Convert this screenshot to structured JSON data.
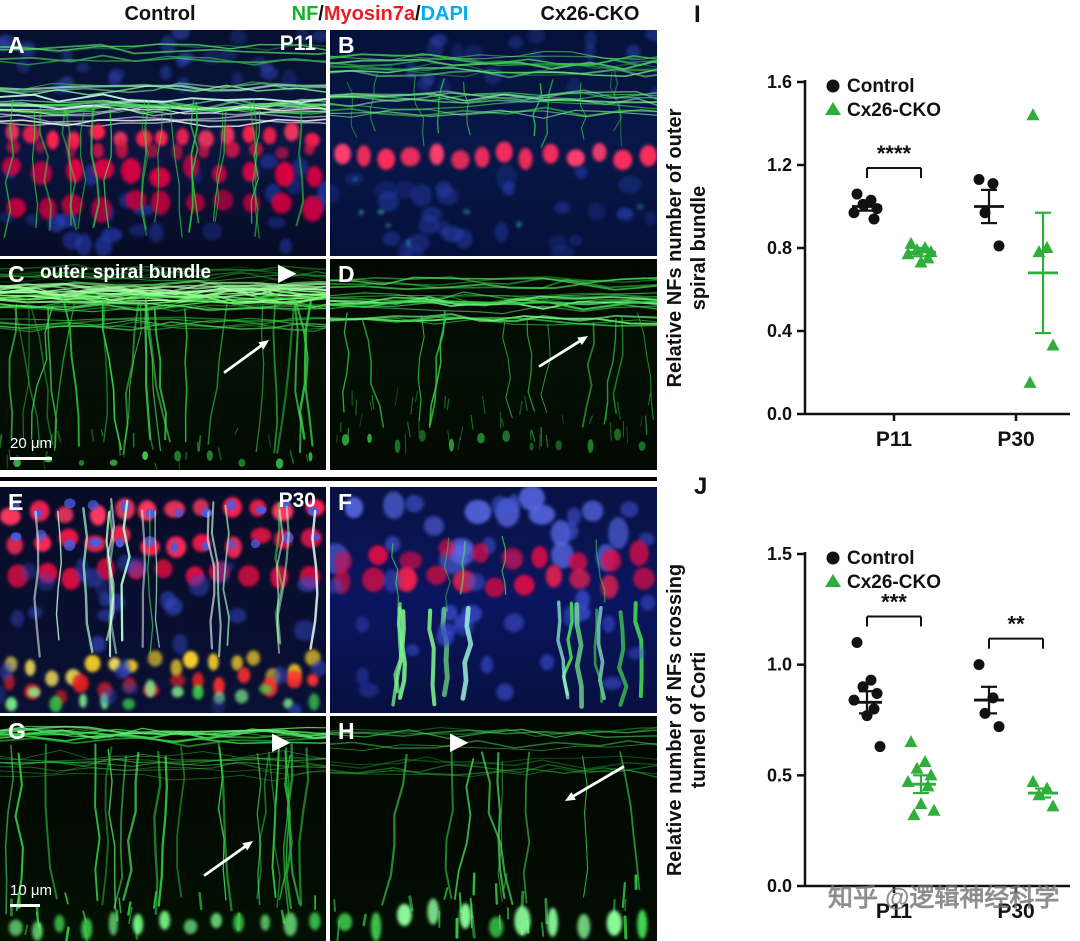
{
  "header": {
    "control": "Control",
    "cko": "Cx26-CKO",
    "stains": {
      "nf": {
        "text": "NF",
        "color": "#16b42a"
      },
      "sep1": "/",
      "myosin": {
        "text": "Myosin7a",
        "color": "#ed1c24"
      },
      "sep2": "/",
      "dapi": {
        "text": "DAPI",
        "color": "#00aeef"
      }
    }
  },
  "panels": {
    "A": {
      "letter": "A",
      "badge": "P11"
    },
    "B": {
      "letter": "B"
    },
    "C": {
      "letter": "C",
      "annotation": "outer spiral bundle",
      "scalebar": "20 μm"
    },
    "D": {
      "letter": "D"
    },
    "E": {
      "letter": "E",
      "badge": "P30"
    },
    "F": {
      "letter": "F"
    },
    "G": {
      "letter": "G",
      "scalebar": "10 μm"
    },
    "H": {
      "letter": "H"
    }
  },
  "icons": {
    "arrowhead_right": "▶"
  },
  "watermark": "知乎 @逻辑神经科学",
  "chart_data": [
    {
      "panel_label": "I",
      "type": "scatter",
      "title": "",
      "ylabel": "Relative NFs number of outer spiral bundle",
      "ylabel_lines": [
        "Relative NFs number of outer",
        "spiral bundle"
      ],
      "xlabel": "",
      "ylim": [
        0,
        1.6
      ],
      "yticks": [
        0.0,
        0.4,
        0.8,
        1.2,
        1.6
      ],
      "categories": [
        "P11",
        "P30"
      ],
      "legend": [
        {
          "name": "Control",
          "marker": "circle",
          "color": "#111111"
        },
        {
          "name": "Cx26-CKO",
          "marker": "triangle",
          "color": "#2fae3c"
        }
      ],
      "groups": [
        {
          "category": "P11",
          "series": "Control",
          "values": [
            1.06,
            1.03,
            1.01,
            0.99,
            0.97,
            0.94
          ],
          "mean": 1.0,
          "sem": 0.02
        },
        {
          "category": "P11",
          "series": "Cx26-CKO",
          "values": [
            0.82,
            0.8,
            0.79,
            0.78,
            0.77,
            0.75,
            0.73
          ],
          "mean": 0.78,
          "sem": 0.02
        },
        {
          "category": "P30",
          "series": "Control",
          "values": [
            1.13,
            1.11,
            0.97,
            0.81
          ],
          "mean": 1.0,
          "sem": 0.08
        },
        {
          "category": "P30",
          "series": "Cx26-CKO",
          "values": [
            1.44,
            0.8,
            0.78,
            0.33,
            0.15
          ],
          "mean": 0.68,
          "sem": 0.29
        }
      ],
      "significance": [
        {
          "category": "P11",
          "label": "****"
        }
      ]
    },
    {
      "panel_label": "J",
      "type": "scatter",
      "title": "",
      "ylabel": "Relative number of NFs crossing tunnel of Corti",
      "ylabel_lines": [
        "Relative number of NFs crossing",
        "tunnel of Corti"
      ],
      "xlabel": "",
      "ylim": [
        0,
        1.5
      ],
      "yticks": [
        0.0,
        0.5,
        1.0,
        1.5
      ],
      "categories": [
        "P11",
        "P30"
      ],
      "legend": [
        {
          "name": "Control",
          "marker": "circle",
          "color": "#111111"
        },
        {
          "name": "Cx26-CKO",
          "marker": "triangle",
          "color": "#2fae3c"
        }
      ],
      "groups": [
        {
          "category": "P11",
          "series": "Control",
          "values": [
            1.1,
            0.93,
            0.9,
            0.87,
            0.84,
            0.8,
            0.77,
            0.63
          ],
          "mean": 0.83,
          "sem": 0.05
        },
        {
          "category": "P11",
          "series": "Cx26-CKO",
          "values": [
            0.65,
            0.56,
            0.53,
            0.5,
            0.47,
            0.45,
            0.37,
            0.34,
            0.32
          ],
          "mean": 0.46,
          "sem": 0.04
        },
        {
          "category": "P30",
          "series": "Control",
          "values": [
            1.0,
            0.85,
            0.78,
            0.72
          ],
          "mean": 0.84,
          "sem": 0.06
        },
        {
          "category": "P30",
          "series": "Cx26-CKO",
          "values": [
            0.47,
            0.44,
            0.41,
            0.36
          ],
          "mean": 0.42,
          "sem": 0.02
        }
      ],
      "significance": [
        {
          "category": "P11",
          "label": "***"
        },
        {
          "category": "P30",
          "label": "**"
        }
      ]
    }
  ]
}
